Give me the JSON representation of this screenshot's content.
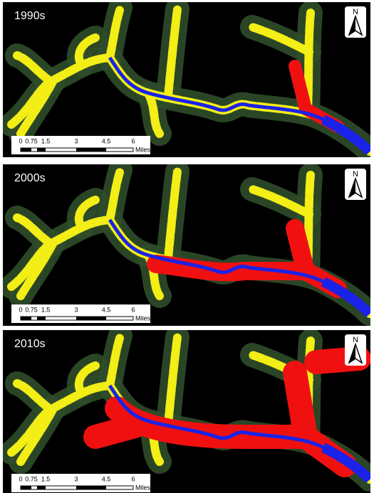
{
  "panels": [
    {
      "label": "1990s"
    },
    {
      "label": "2000s"
    },
    {
      "label": "2010s"
    }
  ],
  "scale_bar": {
    "labels": [
      "0",
      "0.75",
      "1.5",
      "3",
      "4.5",
      "6"
    ],
    "unit": "Miles"
  },
  "north_arrow": "N"
}
